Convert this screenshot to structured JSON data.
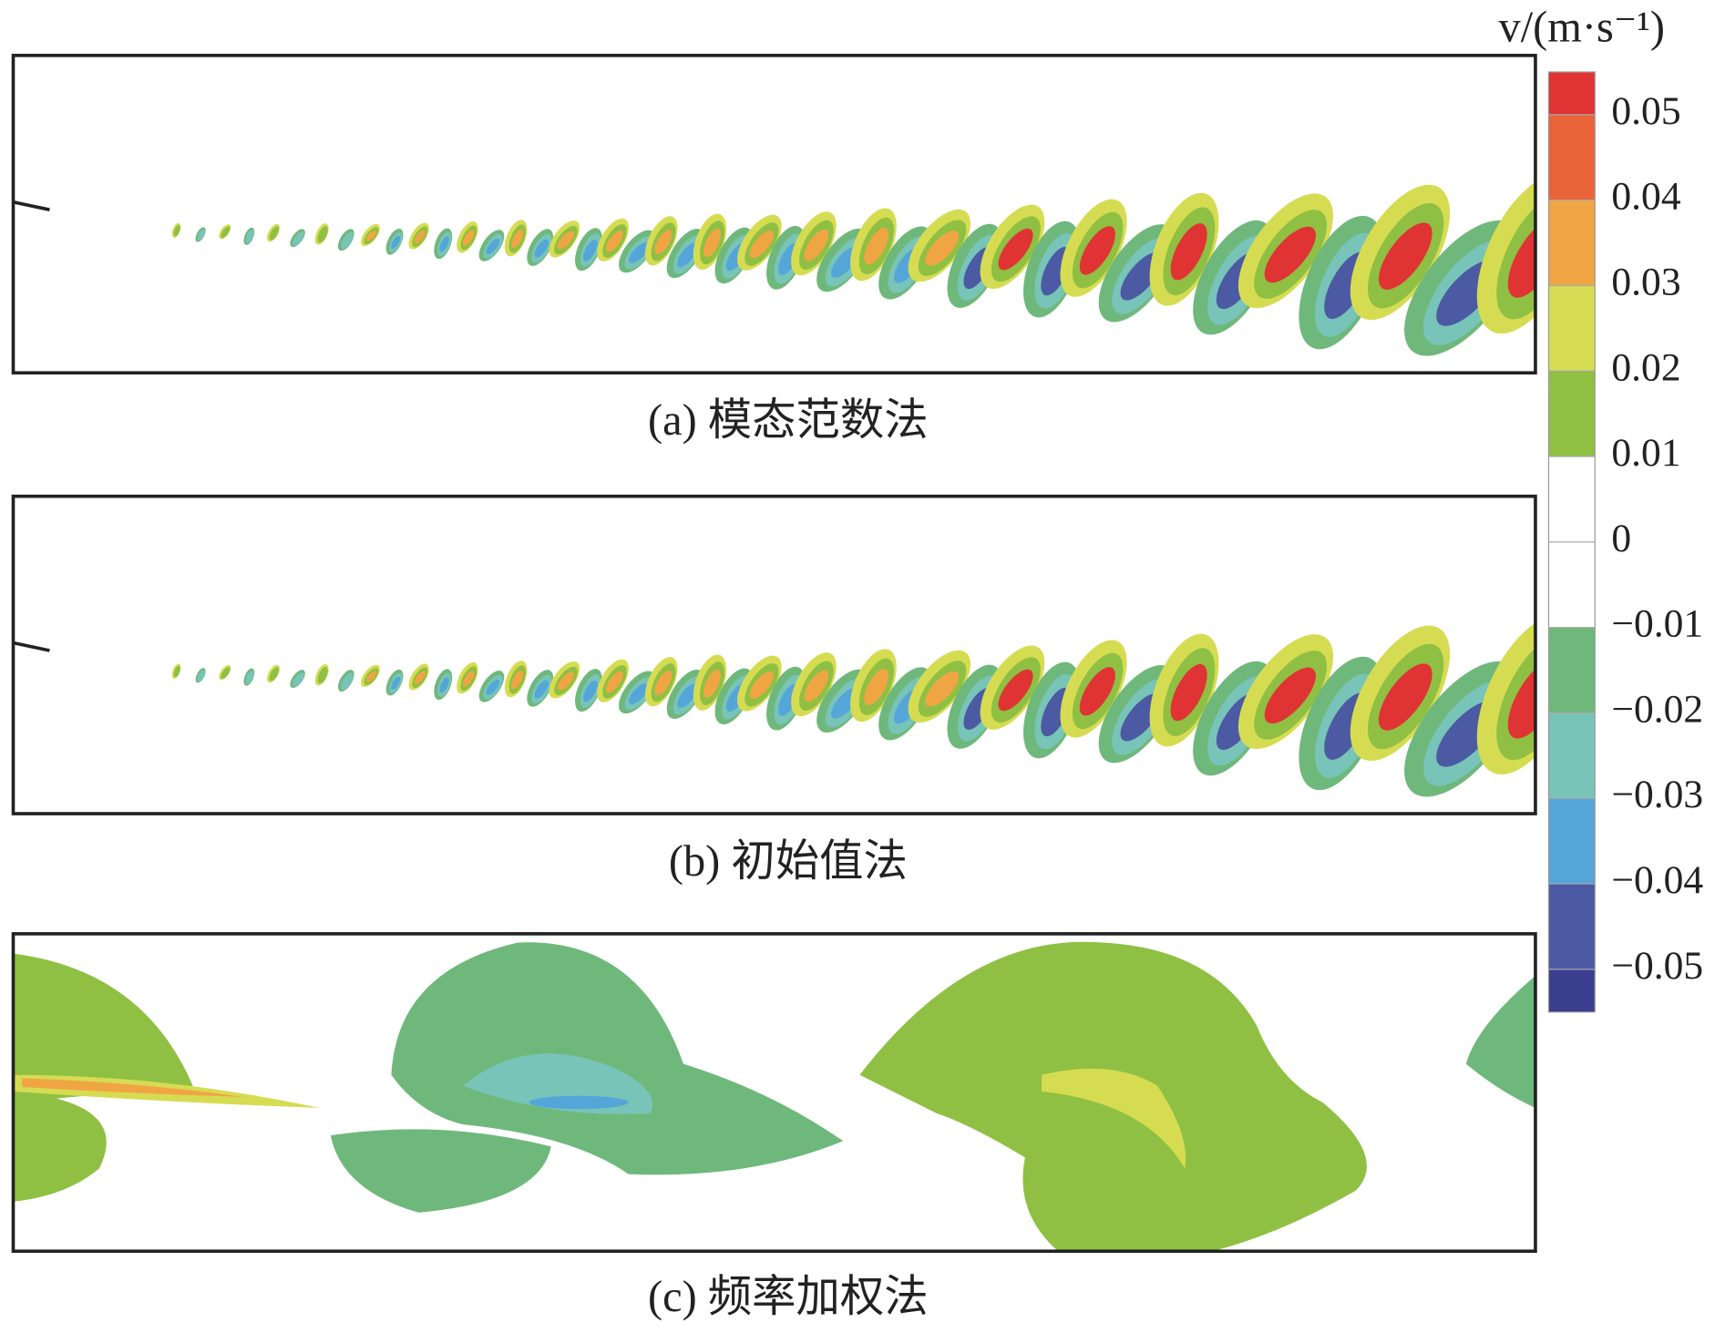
{
  "chart_data": {
    "type": "contour",
    "panels": [
      {
        "caption": "(a) 模态范数法"
      },
      {
        "caption": "(b) 初始值法"
      },
      {
        "caption": "(c) 频率加权法"
      }
    ],
    "colorbar": {
      "title": "v/(m·s⁻¹)",
      "clim": [
        -0.055,
        0.055
      ],
      "levels": [
        -0.055,
        -0.05,
        -0.04,
        -0.03,
        -0.02,
        -0.01,
        0.01,
        0.02,
        0.03,
        0.04,
        0.05,
        0.055
      ],
      "colors": [
        "#3b3d8e",
        "#4b5aa2",
        "#55a6d8",
        "#78c4b9",
        "#6fb87b",
        "#ffffff",
        "#8fc043",
        "#d6dc52",
        "#f0a544",
        "#ea6439",
        "#e03333"
      ],
      "ticks": [
        0.05,
        0.04,
        0.03,
        0.02,
        0.01,
        0,
        {
          "value": -0.01,
          "label": "−0.01"
        },
        {
          "value": -0.02,
          "label": "−0.02"
        },
        {
          "value": -0.03,
          "label": "−0.03"
        },
        {
          "value": -0.04,
          "label": "−0.04"
        },
        {
          "value": -0.05,
          "label": "−0.05"
        }
      ]
    }
  }
}
